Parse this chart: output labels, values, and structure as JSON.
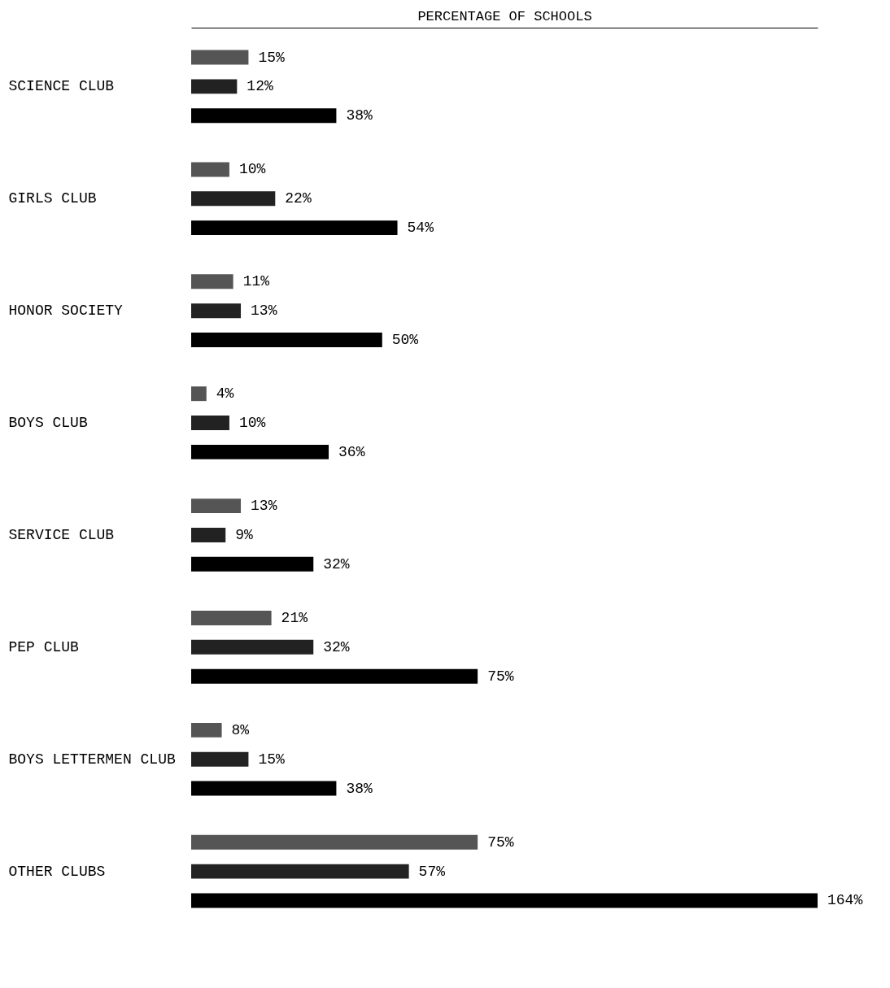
{
  "chart_data": {
    "type": "bar",
    "orientation": "horizontal",
    "xlabel": "PERCENTAGE OF SCHOOLS",
    "categories": [
      "SCIENCE CLUB",
      "GIRLS CLUB",
      "HONOR SOCIETY",
      "BOYS CLUB",
      "SERVICE CLUB",
      "PEP CLUB",
      "BOYS LETTERMEN CLUB",
      "OTHER CLUBS"
    ],
    "series": [
      {
        "color": "#555555",
        "values": [
          15,
          10,
          11,
          4,
          13,
          21,
          8,
          75
        ],
        "value_labels": [
          "15%",
          "10%",
          "11%",
          "4%",
          "13%",
          "21%",
          "8%",
          "75%"
        ]
      },
      {
        "color": "#222222",
        "values": [
          12,
          22,
          13,
          10,
          9,
          32,
          15,
          57
        ],
        "value_labels": [
          "12%",
          "22%",
          "13%",
          "10%",
          "9%",
          "32%",
          "15%",
          "57%"
        ]
      },
      {
        "color": "#000000",
        "values": [
          38,
          54,
          50,
          36,
          32,
          75,
          38,
          164
        ],
        "value_labels": [
          "38%",
          "54%",
          "50%",
          "36%",
          "32%",
          "75%",
          "38%",
          "164%"
        ]
      }
    ],
    "tick_labels": "y",
    "grid": false,
    "legend": false
  }
}
